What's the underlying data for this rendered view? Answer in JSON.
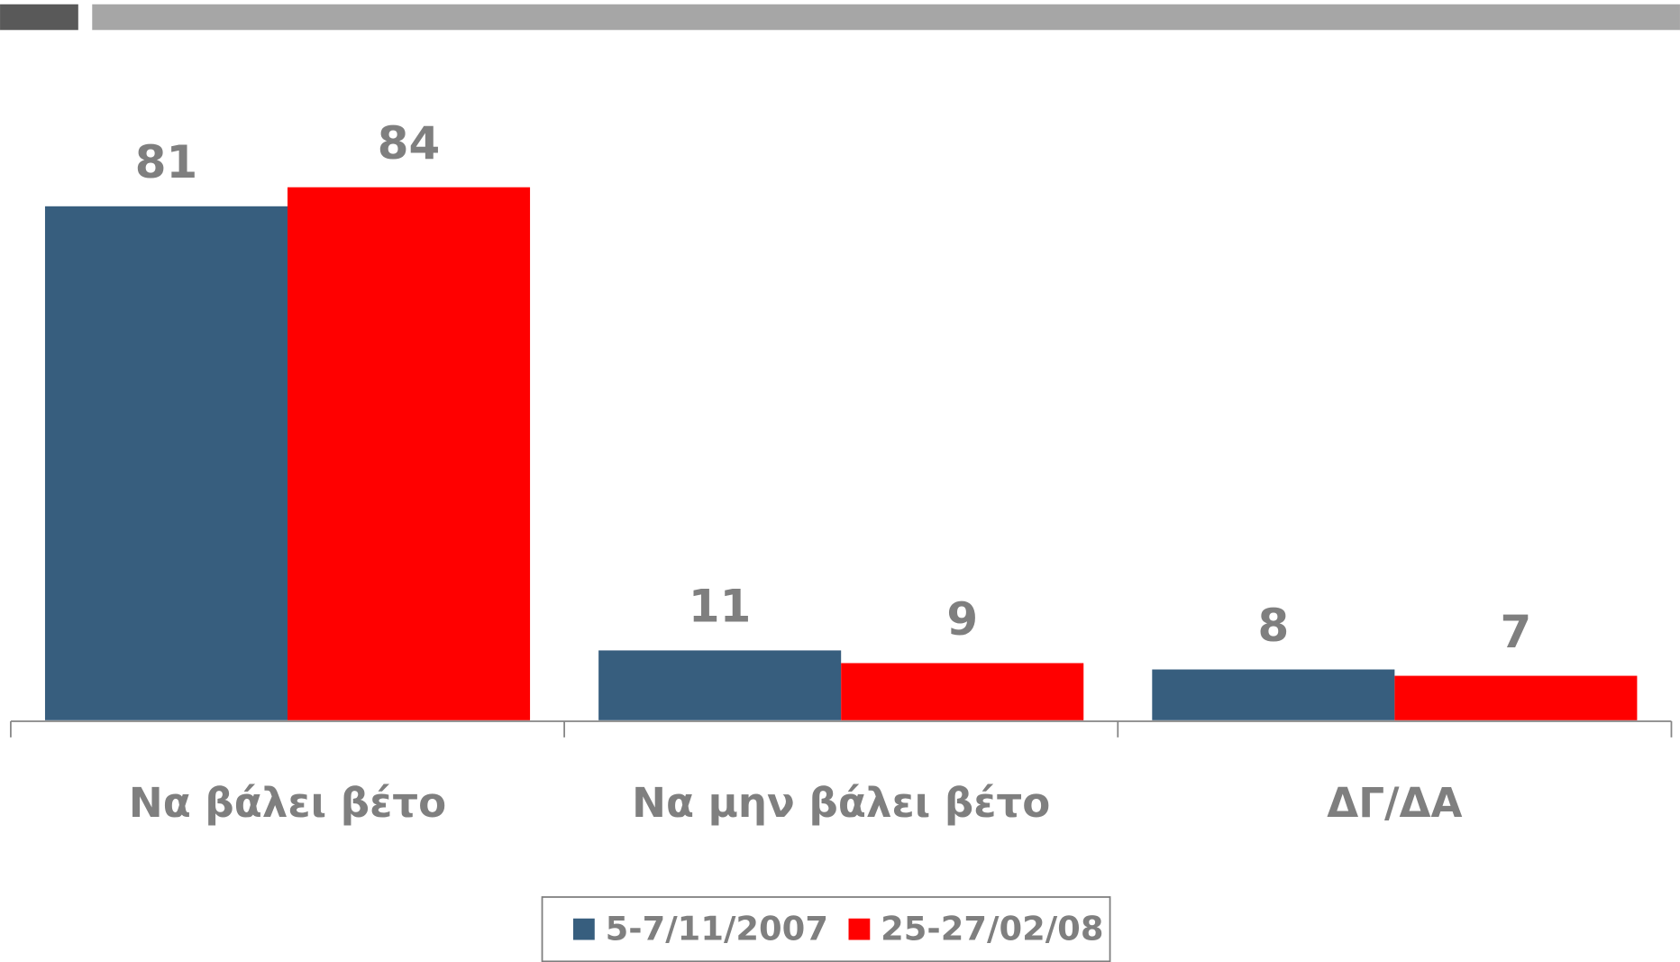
{
  "chart_data": {
    "type": "bar",
    "categories": [
      "Να βάλει βέτο",
      "Να μην βάλει βέτο",
      "ΔΓ/ΔΑ"
    ],
    "series": [
      {
        "name": "5-7/11/2007",
        "color": "#375e7e",
        "values": [
          81,
          11,
          8
        ]
      },
      {
        "name": "25-27/02/08",
        "color": "#ff0000",
        "values": [
          84,
          9,
          7
        ]
      }
    ],
    "ylim": [
      0,
      100
    ],
    "legend": "bottom"
  }
}
